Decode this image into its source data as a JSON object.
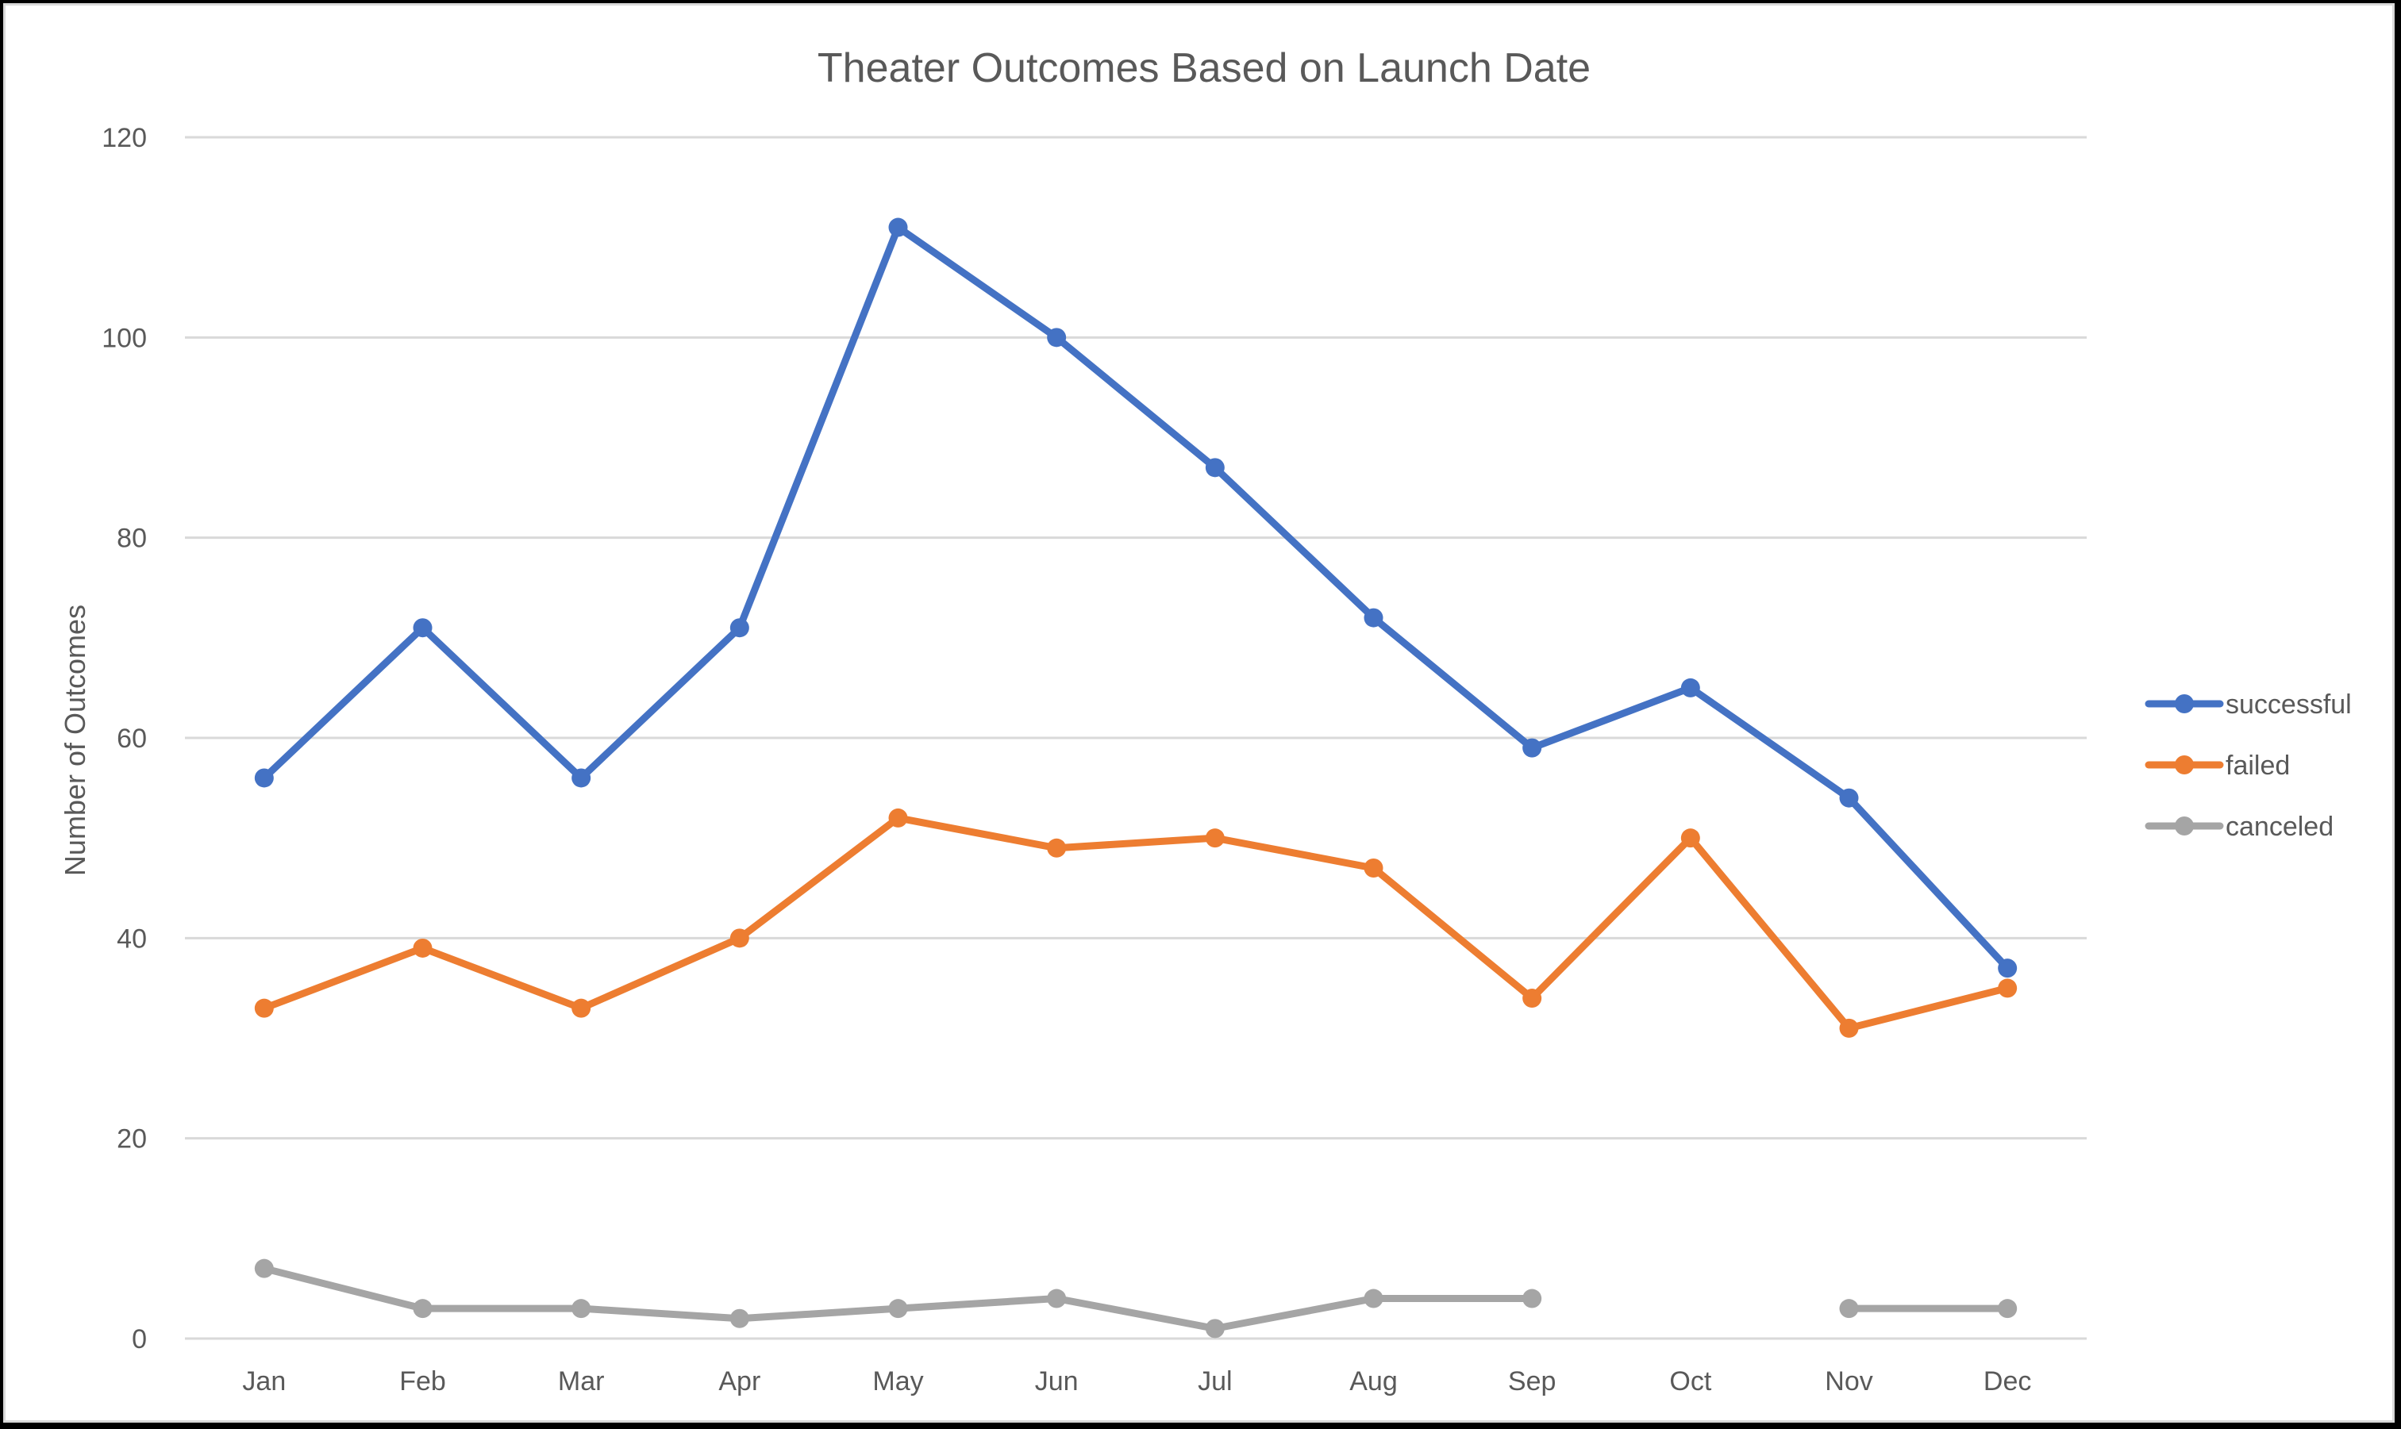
{
  "chart_data": {
    "type": "line",
    "title": "Theater Outcomes Based on Launch Date",
    "xlabel": "",
    "ylabel": "Number of Outcomes",
    "categories": [
      "Jan",
      "Feb",
      "Mar",
      "Apr",
      "May",
      "Jun",
      "Jul",
      "Aug",
      "Sep",
      "Oct",
      "Nov",
      "Dec"
    ],
    "series": [
      {
        "name": "successful",
        "color": "#4472C4",
        "values": [
          56,
          71,
          56,
          71,
          111,
          100,
          87,
          72,
          59,
          65,
          54,
          37
        ]
      },
      {
        "name": "failed",
        "color": "#ED7D31",
        "values": [
          33,
          39,
          33,
          40,
          52,
          49,
          50,
          47,
          34,
          50,
          31,
          35
        ]
      },
      {
        "name": "canceled",
        "color": "#A5A5A5",
        "values": [
          7,
          3,
          3,
          2,
          3,
          4,
          1,
          4,
          4,
          null,
          3,
          3
        ]
      }
    ],
    "ylim": [
      0,
      120
    ],
    "yticks": [
      0,
      20,
      40,
      60,
      80,
      100,
      120
    ],
    "grid": true,
    "legend_position": "right",
    "markers": true
  }
}
